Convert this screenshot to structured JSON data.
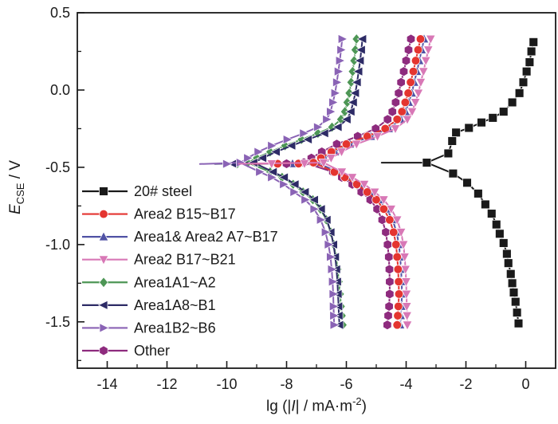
{
  "figure": {
    "background": "#ffffff",
    "text_color": "#1a1a1a",
    "axis_color": "#1a1a1a"
  },
  "labels": {
    "xlabel": {
      "p1": "lg (|",
      "i": "I",
      "p2": "| / mA·m",
      "sup": "-2",
      "p3": ")"
    },
    "ylabel": {
      "i": "E",
      "sub": "CSE",
      "p2": " / V"
    }
  },
  "chart_data": {
    "type": "line",
    "title": "",
    "xlabel": "lg (|I| / mA·m^-2)",
    "ylabel": "E_CSE / V",
    "xlim": [
      -15,
      1
    ],
    "ylim": [
      -1.8,
      0.5
    ],
    "x_major_ticks": [
      {
        "v": -14,
        "label": "-14"
      },
      {
        "v": -12,
        "label": "-12"
      },
      {
        "v": -10,
        "label": "-10"
      },
      {
        "v": -8,
        "label": "-8"
      },
      {
        "v": -6,
        "label": "-6"
      },
      {
        "v": -4,
        "label": "-4"
      },
      {
        "v": -2,
        "label": "-2"
      },
      {
        "v": 0,
        "label": "0"
      }
    ],
    "x_minor_ticks": [
      -13,
      -11,
      -9,
      -7,
      -5,
      -3,
      -1
    ],
    "y_major_ticks": [
      {
        "v": 0.5,
        "label": "0.5"
      },
      {
        "v": 0.0,
        "label": "0.0"
      },
      {
        "v": -0.5,
        "label": "-0.5"
      },
      {
        "v": -1.0,
        "label": "-1.0"
      },
      {
        "v": -1.5,
        "label": "-1.5"
      }
    ],
    "y_minor_ticks": [
      0.25,
      -0.25,
      -0.75,
      -1.25,
      -1.75
    ],
    "legend": {
      "position": "inside-bottom-left"
    },
    "draw_order": [
      "a7b17",
      "a1a2",
      "a8b1",
      "b2b6",
      "other",
      "b15b17",
      "b17b21",
      "steel"
    ],
    "series": [
      {
        "id": "steel",
        "name": "20# steel",
        "color": "#1a1a1a",
        "marker": "square",
        "e_corr": -0.47,
        "nose_tip": -4.82,
        "nose_markers": [],
        "anodic": [
          [
            0.26,
            0.31
          ],
          [
            0.19,
            0.25
          ],
          [
            0.13,
            0.18
          ],
          [
            0.03,
            0.12
          ],
          [
            -0.08,
            0.05
          ],
          [
            -0.21,
            -0.02
          ],
          [
            -0.45,
            -0.08
          ],
          [
            -0.74,
            -0.14
          ],
          [
            -1.1,
            -0.18
          ],
          [
            -1.48,
            -0.21
          ],
          [
            -1.9,
            -0.245
          ],
          [
            -2.33,
            -0.275
          ],
          [
            -2.46,
            -0.33
          ],
          [
            -2.59,
            -0.41
          ],
          [
            -3.31,
            -0.47
          ]
        ],
        "cathodic": [
          [
            -2.43,
            -0.54
          ],
          [
            -1.96,
            -0.6
          ],
          [
            -1.59,
            -0.67
          ],
          [
            -1.35,
            -0.74
          ],
          [
            -1.14,
            -0.8
          ],
          [
            -0.98,
            -0.87
          ],
          [
            -0.87,
            -0.93
          ],
          [
            -0.74,
            -0.99
          ],
          [
            -0.63,
            -1.06
          ],
          [
            -0.58,
            -1.12
          ],
          [
            -0.5,
            -1.19
          ],
          [
            -0.45,
            -1.25
          ],
          [
            -0.4,
            -1.31
          ],
          [
            -0.34,
            -1.37
          ],
          [
            -0.29,
            -1.44
          ],
          [
            -0.24,
            -1.51
          ]
        ]
      },
      {
        "id": "b15b17",
        "name": "Area2 B15~B17",
        "color": "#e43530",
        "marker": "circle",
        "e_corr": -0.477,
        "nose_tip": -9.2,
        "nose_markers": [
          [
            -7.6,
            -0.476
          ],
          [
            -8.3,
            -0.477
          ]
        ],
        "anodic": [
          [
            -3.52,
            0.33
          ],
          [
            -3.6,
            0.26
          ],
          [
            -3.68,
            0.19
          ],
          [
            -3.76,
            0.12
          ],
          [
            -3.85,
            0.05
          ],
          [
            -3.93,
            -0.02
          ],
          [
            -4.03,
            -0.08
          ],
          [
            -4.14,
            -0.14
          ],
          [
            -4.3,
            -0.19
          ],
          [
            -4.7,
            -0.25
          ],
          [
            -5.3,
            -0.3
          ],
          [
            -6.0,
            -0.35
          ],
          [
            -6.5,
            -0.4
          ],
          [
            -6.85,
            -0.44
          ],
          [
            -7.1,
            -0.47
          ]
        ],
        "cathodic": [
          [
            -6.4,
            -0.53
          ],
          [
            -6.05,
            -0.565
          ],
          [
            -5.65,
            -0.61
          ],
          [
            -5.3,
            -0.66
          ],
          [
            -5.0,
            -0.71
          ],
          [
            -4.75,
            -0.77
          ],
          [
            -4.55,
            -0.84
          ],
          [
            -4.42,
            -0.92
          ],
          [
            -4.34,
            -1.0
          ],
          [
            -4.3,
            -1.08
          ],
          [
            -4.27,
            -1.16
          ],
          [
            -4.25,
            -1.24
          ],
          [
            -4.24,
            -1.32
          ],
          [
            -4.26,
            -1.4
          ],
          [
            -4.28,
            -1.46
          ],
          [
            -4.3,
            -1.52
          ]
        ]
      },
      {
        "id": "a7b17",
        "name": "Area1& Area2 A7~B17",
        "color": "#5052a5",
        "marker": "triangle-up",
        "e_corr": -0.477,
        "nose_tip": -8.9,
        "nose_markers": [
          [
            -7.8,
            -0.477
          ]
        ],
        "anodic": [
          [
            -3.4,
            0.33
          ],
          [
            -3.48,
            0.26
          ],
          [
            -3.56,
            0.19
          ],
          [
            -3.64,
            0.12
          ],
          [
            -3.73,
            0.05
          ],
          [
            -3.81,
            -0.02
          ],
          [
            -3.91,
            -0.08
          ],
          [
            -4.02,
            -0.14
          ],
          [
            -4.18,
            -0.19
          ],
          [
            -4.58,
            -0.25
          ],
          [
            -5.18,
            -0.3
          ],
          [
            -5.88,
            -0.35
          ],
          [
            -6.38,
            -0.4
          ],
          [
            -6.73,
            -0.44
          ],
          [
            -6.98,
            -0.47
          ]
        ],
        "cathodic": [
          [
            -6.3,
            -0.53
          ],
          [
            -5.95,
            -0.565
          ],
          [
            -5.55,
            -0.61
          ],
          [
            -5.2,
            -0.66
          ],
          [
            -4.9,
            -0.71
          ],
          [
            -4.65,
            -0.77
          ],
          [
            -4.45,
            -0.84
          ],
          [
            -4.32,
            -0.92
          ],
          [
            -4.24,
            -1.0
          ],
          [
            -4.2,
            -1.08
          ],
          [
            -4.17,
            -1.16
          ],
          [
            -4.15,
            -1.24
          ],
          [
            -4.14,
            -1.32
          ],
          [
            -4.16,
            -1.4
          ],
          [
            -4.18,
            -1.46
          ],
          [
            -4.2,
            -1.52
          ]
        ]
      },
      {
        "id": "b17b21",
        "name": "Area2 B17~B21",
        "color": "#d878b6",
        "marker": "triangle-down",
        "e_corr": -0.477,
        "nose_tip": -9.6,
        "nose_markers": [
          [
            -7.4,
            -0.476
          ],
          [
            -8.5,
            -0.477
          ]
        ],
        "anodic": [
          [
            -3.18,
            0.33
          ],
          [
            -3.26,
            0.26
          ],
          [
            -3.34,
            0.19
          ],
          [
            -3.42,
            0.12
          ],
          [
            -3.51,
            0.05
          ],
          [
            -3.59,
            -0.02
          ],
          [
            -3.69,
            -0.08
          ],
          [
            -3.8,
            -0.14
          ],
          [
            -3.96,
            -0.19
          ],
          [
            -4.36,
            -0.25
          ],
          [
            -4.96,
            -0.3
          ],
          [
            -5.66,
            -0.35
          ],
          [
            -6.16,
            -0.4
          ],
          [
            -6.51,
            -0.44
          ],
          [
            -6.76,
            -0.47
          ]
        ],
        "cathodic": [
          [
            -6.15,
            -0.53
          ],
          [
            -5.8,
            -0.565
          ],
          [
            -5.4,
            -0.61
          ],
          [
            -5.05,
            -0.66
          ],
          [
            -4.75,
            -0.71
          ],
          [
            -4.5,
            -0.77
          ],
          [
            -4.3,
            -0.84
          ],
          [
            -4.17,
            -0.92
          ],
          [
            -4.09,
            -1.0
          ],
          [
            -4.05,
            -1.08
          ],
          [
            -4.02,
            -1.16
          ],
          [
            -4.0,
            -1.24
          ],
          [
            -3.99,
            -1.32
          ],
          [
            -3.98,
            -1.4
          ],
          [
            -3.97,
            -1.46
          ],
          [
            -3.96,
            -1.52
          ]
        ]
      },
      {
        "id": "a1a2",
        "name": "Area1A1~A2",
        "color": "#4d9655",
        "marker": "diamond",
        "e_corr": -0.478,
        "nose_tip": -10.0,
        "nose_markers": [
          [
            -9.65,
            -0.477
          ]
        ],
        "anodic": [
          [
            -5.66,
            0.33
          ],
          [
            -5.7,
            0.26
          ],
          [
            -5.74,
            0.19
          ],
          [
            -5.79,
            0.12
          ],
          [
            -5.84,
            0.05
          ],
          [
            -5.9,
            -0.02
          ],
          [
            -5.97,
            -0.08
          ],
          [
            -6.05,
            -0.14
          ],
          [
            -6.18,
            -0.19
          ],
          [
            -6.48,
            -0.24
          ],
          [
            -6.95,
            -0.28
          ],
          [
            -7.5,
            -0.32
          ],
          [
            -8.05,
            -0.36
          ],
          [
            -8.55,
            -0.4
          ],
          [
            -9.0,
            -0.44
          ],
          [
            -9.3,
            -0.47
          ]
        ],
        "cathodic": [
          [
            -8.55,
            -0.53
          ],
          [
            -8.15,
            -0.565
          ],
          [
            -7.78,
            -0.61
          ],
          [
            -7.45,
            -0.66
          ],
          [
            -7.12,
            -0.71
          ],
          [
            -6.87,
            -0.77
          ],
          [
            -6.67,
            -0.84
          ],
          [
            -6.52,
            -0.92
          ],
          [
            -6.42,
            -1.0
          ],
          [
            -6.35,
            -1.08
          ],
          [
            -6.29,
            -1.16
          ],
          [
            -6.25,
            -1.24
          ],
          [
            -6.21,
            -1.32
          ],
          [
            -6.18,
            -1.4
          ],
          [
            -6.15,
            -1.46
          ],
          [
            -6.12,
            -1.52
          ]
        ]
      },
      {
        "id": "a8b1",
        "name": "Area1A8~B1",
        "color": "#2d2b66",
        "marker": "triangle-left",
        "e_corr": -0.478,
        "nose_tip": -10.4,
        "nose_markers": [
          [
            -9.8,
            -0.477
          ]
        ],
        "anodic": [
          [
            -5.46,
            0.33
          ],
          [
            -5.5,
            0.26
          ],
          [
            -5.54,
            0.19
          ],
          [
            -5.59,
            0.12
          ],
          [
            -5.64,
            0.05
          ],
          [
            -5.7,
            -0.02
          ],
          [
            -5.77,
            -0.08
          ],
          [
            -5.85,
            -0.14
          ],
          [
            -5.98,
            -0.19
          ],
          [
            -6.28,
            -0.24
          ],
          [
            -6.73,
            -0.28
          ],
          [
            -7.28,
            -0.32
          ],
          [
            -7.83,
            -0.36
          ],
          [
            -8.35,
            -0.4
          ],
          [
            -8.8,
            -0.44
          ],
          [
            -9.1,
            -0.47
          ]
        ],
        "cathodic": [
          [
            -8.45,
            -0.53
          ],
          [
            -8.08,
            -0.565
          ],
          [
            -7.72,
            -0.61
          ],
          [
            -7.38,
            -0.66
          ],
          [
            -7.07,
            -0.71
          ],
          [
            -6.84,
            -0.77
          ],
          [
            -6.65,
            -0.84
          ],
          [
            -6.52,
            -0.92
          ],
          [
            -6.43,
            -1.0
          ],
          [
            -6.37,
            -1.08
          ],
          [
            -6.33,
            -1.16
          ],
          [
            -6.3,
            -1.24
          ],
          [
            -6.28,
            -1.32
          ],
          [
            -6.26,
            -1.4
          ],
          [
            -6.25,
            -1.46
          ],
          [
            -6.23,
            -1.52
          ]
        ]
      },
      {
        "id": "b2b6",
        "name": "Area1B2~B6",
        "color": "#8a63b5",
        "marker": "triangle-right",
        "e_corr": -0.479,
        "nose_tip": -10.9,
        "nose_markers": [
          [
            -10.0,
            -0.478
          ]
        ],
        "anodic": [
          [
            -6.14,
            0.33
          ],
          [
            -6.18,
            0.26
          ],
          [
            -6.22,
            0.19
          ],
          [
            -6.27,
            0.12
          ],
          [
            -6.32,
            0.05
          ],
          [
            -6.38,
            -0.02
          ],
          [
            -6.45,
            -0.08
          ],
          [
            -6.53,
            -0.14
          ],
          [
            -6.66,
            -0.19
          ],
          [
            -6.96,
            -0.24
          ],
          [
            -7.43,
            -0.28
          ],
          [
            -7.98,
            -0.32
          ],
          [
            -8.5,
            -0.36
          ],
          [
            -8.95,
            -0.4
          ],
          [
            -9.3,
            -0.44
          ],
          [
            -9.55,
            -0.47
          ]
        ],
        "cathodic": [
          [
            -8.9,
            -0.53
          ],
          [
            -8.5,
            -0.565
          ],
          [
            -8.1,
            -0.61
          ],
          [
            -7.75,
            -0.66
          ],
          [
            -7.38,
            -0.71
          ],
          [
            -7.08,
            -0.77
          ],
          [
            -6.86,
            -0.84
          ],
          [
            -6.7,
            -0.92
          ],
          [
            -6.6,
            -1.0
          ],
          [
            -6.53,
            -1.08
          ],
          [
            -6.49,
            -1.16
          ],
          [
            -6.46,
            -1.24
          ],
          [
            -6.44,
            -1.32
          ],
          [
            -6.43,
            -1.4
          ],
          [
            -6.42,
            -1.46
          ],
          [
            -6.41,
            -1.52
          ]
        ]
      },
      {
        "id": "other",
        "name": "Other",
        "color": "#8e2b7e",
        "marker": "hexagon",
        "e_corr": -0.477,
        "nose_tip": -8.4,
        "nose_markers": [
          [
            -8.0,
            -0.477
          ]
        ],
        "anodic": [
          [
            -3.84,
            0.33
          ],
          [
            -3.92,
            0.26
          ],
          [
            -4.0,
            0.19
          ],
          [
            -4.08,
            0.12
          ],
          [
            -4.17,
            0.05
          ],
          [
            -4.25,
            -0.02
          ],
          [
            -4.35,
            -0.08
          ],
          [
            -4.46,
            -0.14
          ],
          [
            -4.62,
            -0.19
          ],
          [
            -5.02,
            -0.25
          ],
          [
            -5.62,
            -0.3
          ],
          [
            -6.32,
            -0.35
          ],
          [
            -6.82,
            -0.4
          ],
          [
            -7.17,
            -0.44
          ],
          [
            -7.42,
            -0.47
          ]
        ],
        "cathodic": [
          [
            -6.45,
            -0.53
          ],
          [
            -6.15,
            -0.565
          ],
          [
            -5.8,
            -0.61
          ],
          [
            -5.5,
            -0.66
          ],
          [
            -5.2,
            -0.71
          ],
          [
            -4.97,
            -0.77
          ],
          [
            -4.8,
            -0.84
          ],
          [
            -4.68,
            -0.92
          ],
          [
            -4.62,
            -1.0
          ],
          [
            -4.58,
            -1.08
          ],
          [
            -4.56,
            -1.16
          ],
          [
            -4.55,
            -1.24
          ],
          [
            -4.55,
            -1.32
          ],
          [
            -4.57,
            -1.4
          ],
          [
            -4.6,
            -1.46
          ],
          [
            -4.63,
            -1.52
          ]
        ]
      }
    ]
  }
}
